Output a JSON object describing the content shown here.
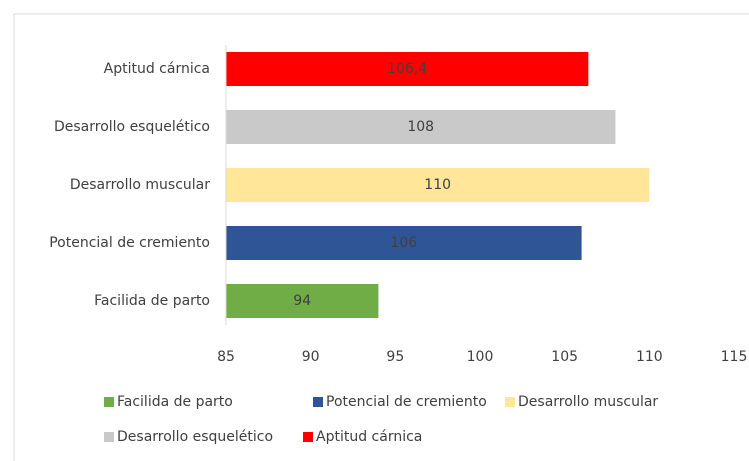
{
  "chart_data": {
    "type": "bar",
    "orientation": "horizontal",
    "categories": [
      "Facilida de parto",
      "Potencial de cremiento",
      "Desarrollo muscular",
      "Desarrollo esquelético",
      "Aptitud cárnica"
    ],
    "values": [
      94,
      106,
      110,
      108,
      106.4
    ],
    "value_labels": [
      "94",
      "106",
      "110",
      "108",
      "106,4"
    ],
    "colors": [
      "#70ad47",
      "#2f5597",
      "#ffe699",
      "#c9c9c9",
      "#ff0000"
    ],
    "xlim": [
      85,
      115
    ],
    "xticks": [
      85,
      90,
      95,
      100,
      105,
      110,
      115
    ],
    "grid": false,
    "legend": "bottom"
  }
}
